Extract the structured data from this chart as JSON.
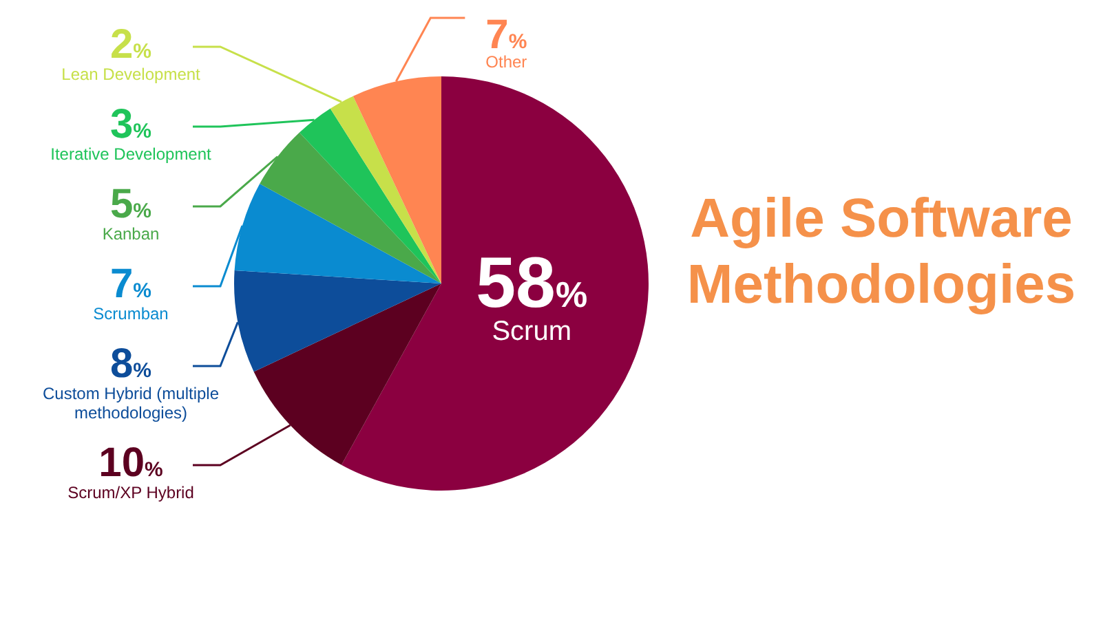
{
  "chart_data": {
    "type": "pie",
    "title": "Agile Software Methodologies",
    "categories": [
      "Scrum",
      "Scrum/XP Hybrid",
      "Custom Hybrid (multiple methodologies)",
      "Scrumban",
      "Kanban",
      "Iterative Development",
      "Lean Development",
      "Other"
    ],
    "values": [
      58,
      10,
      8,
      7,
      5,
      3,
      2,
      7
    ],
    "value_labels": [
      "58%",
      "10%",
      "8%",
      "7%",
      "5%",
      "3%",
      "2%",
      "7%"
    ],
    "colors": [
      "#8b0040",
      "#5c0020",
      "#0d4d9a",
      "#0a8bd0",
      "#4aa94a",
      "#1fc45a",
      "#c7e04a",
      "#ff8552"
    ],
    "legend": false
  }
}
